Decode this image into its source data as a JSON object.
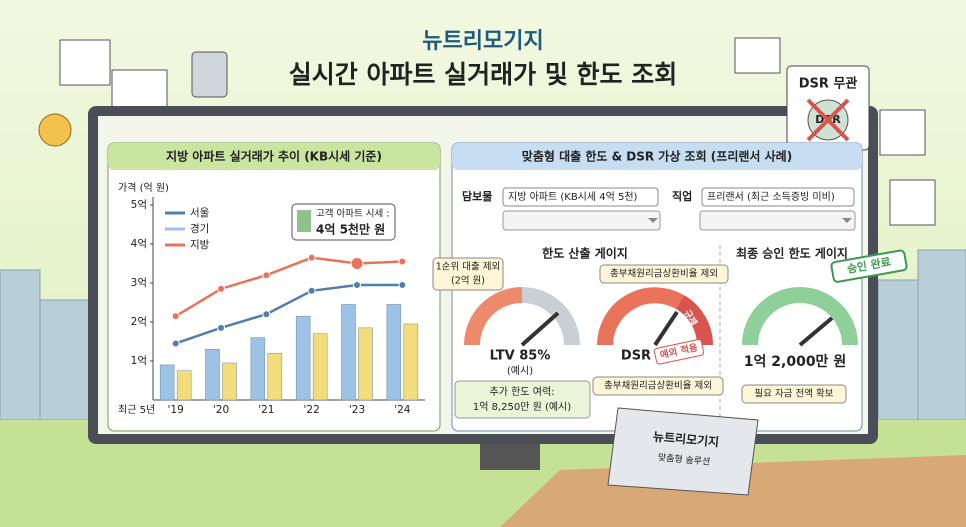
{
  "header": {
    "brand": "뉴트리모기지",
    "title": "실시간 아파트 실거래가 및 한도 조회"
  },
  "badge": {
    "text": "DSR 무관",
    "icon_text": "DSR"
  },
  "chart_data": {
    "type": "bar_line",
    "title": "지방 아파트 실거래가 추이 (KB시세 기준)",
    "y_label": "가격 (억 원)",
    "x_label": "최근 5년",
    "categories": [
      "'19",
      "'20",
      "'21",
      "'22",
      "'23",
      "'24"
    ],
    "series": [
      {
        "name": "서울",
        "kind": "line",
        "color": "#4f7fab",
        "values": [
          1.45,
          1.85,
          2.2,
          2.8,
          2.95,
          2.95
        ]
      },
      {
        "name": "경기",
        "kind": "bar",
        "color": "#9cc3e6",
        "values": [
          0.9,
          1.3,
          1.6,
          2.15,
          2.45,
          2.45
        ]
      },
      {
        "name": "지방",
        "kind": "line",
        "color": "#e8735a",
        "values": [
          2.15,
          2.85,
          3.2,
          3.65,
          3.5,
          3.55
        ]
      },
      {
        "kind": "bar",
        "color": "#f3dc7c",
        "values": [
          0.75,
          0.95,
          1.2,
          1.7,
          1.85,
          1.95
        ]
      }
    ],
    "ylim": [
      0,
      5
    ],
    "yticks": [
      {
        "value": 1,
        "label": "1억"
      },
      {
        "value": 2,
        "label": "2억"
      },
      {
        "value": 3,
        "label": "3억"
      },
      {
        "value": 4,
        "label": "4억"
      },
      {
        "value": 5,
        "label": "5억"
      }
    ],
    "annotation": {
      "lines": [
        "고객 아파트 시세 :",
        "4억 5천만 원"
      ]
    },
    "highlight": {
      "series": 2,
      "index": 4
    }
  },
  "loan": {
    "title": "맞춤형 대출 한도 & DSR 가상 조회 (프리랜서 사례)",
    "fields": [
      {
        "label": "담보물",
        "value": "지방 아파트 (KB시세 4억 5천)"
      },
      {
        "label": "직업",
        "value": "프리랜서 (최근 소득증빙 미비)"
      }
    ],
    "limit_gauge": {
      "title": "한도 산출 게이지",
      "ltv_callout": [
        "1순위 대출 제외",
        "(2억 원)"
      ],
      "ltv": "LTV 85%",
      "ltv_note": "(예시)",
      "dsr_callout": "총부채원리금상환비율 제외",
      "dsr": "DSR",
      "dsr_tag": "예외 적용",
      "dsr_zone": "규제",
      "dsr_note": "총부채원리금상환비율 제외",
      "extra": [
        "추가 한도 여력:",
        "1억 8,250만 원 (예시)"
      ]
    },
    "final_gauge": {
      "title": "최종 승인 한도 게이지",
      "stamp": "승인 완료",
      "amount": "1억 2,000만 원",
      "note": "필요 자금 전액 확보"
    }
  },
  "laptop": {
    "brand": "뉴트리모기지",
    "subtitle": "맞춤형 솔루션"
  }
}
